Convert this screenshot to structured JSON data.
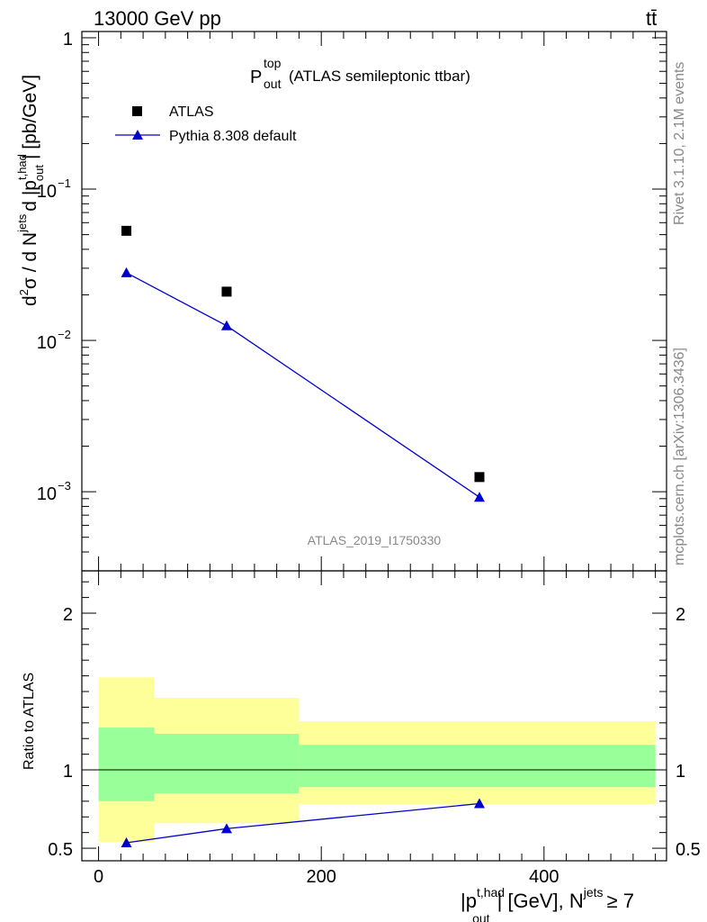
{
  "header": {
    "energy": "13000 GeV pp",
    "process": "tt̄"
  },
  "side": {
    "rivet": "Rivet 3.1.10,  2.1M events",
    "source": "mcplots.cern.ch [arXiv:1306.3436]"
  },
  "chart_data": [
    {
      "type": "scatter",
      "title": {
        "main": "P",
        "sup": "top",
        "sub": "out",
        "rest": "(ATLAS semileptonic ttbar)"
      },
      "watermark": "ATLAS_2019_I1750330",
      "ylabel": "d²σ / d N^jets d |p_out^t,had| [pb/GeV]",
      "yscale": "log",
      "ylim": [
        0.0003,
        1.1
      ],
      "xlim": [
        -15,
        510
      ],
      "yticks": [
        {
          "base": "10",
          "exp": "",
          "value": 1,
          "label": "1"
        },
        {
          "base": "10",
          "exp": "−1",
          "value": 0.1
        },
        {
          "base": "10",
          "exp": "−2",
          "value": 0.01
        },
        {
          "base": "10",
          "exp": "−3",
          "value": 0.001
        }
      ],
      "legend_position": "top-left",
      "series": [
        {
          "name": "ATLAS",
          "marker": "square",
          "color": "#000000",
          "x": [
            25,
            115,
            342
          ],
          "y": [
            0.053,
            0.021,
            0.00125
          ]
        },
        {
          "name": "Pythia 8.308 default",
          "marker": "triangle",
          "color": "#0000cc",
          "x": [
            25,
            115,
            342
          ],
          "y": [
            0.028,
            0.0125,
            0.00092
          ]
        }
      ]
    },
    {
      "type": "line",
      "ylabel": "Ratio to ATLAS",
      "xlabel": "|p_out^t,had| [GeV], N^jets ≥ 7",
      "xlim": [
        -15,
        510
      ],
      "ylim": [
        0.42,
        2.27
      ],
      "yticks": [
        0.5,
        1,
        2
      ],
      "xticks": [
        0,
        200,
        400
      ],
      "bands": [
        {
          "x0": 0,
          "x1": 50,
          "yellow": [
            0.54,
            1.59
          ],
          "green": [
            0.8,
            1.27
          ]
        },
        {
          "x0": 50,
          "x1": 180,
          "yellow": [
            0.66,
            1.46
          ],
          "green": [
            0.85,
            1.23
          ]
        },
        {
          "x0": 180,
          "x1": 500,
          "yellow": [
            0.78,
            1.31
          ],
          "green": [
            0.89,
            1.16
          ]
        }
      ],
      "series": [
        {
          "name": "Pythia 8.308 default",
          "marker": "triangle",
          "color": "#0000cc",
          "x": [
            25,
            115,
            342
          ],
          "y": [
            0.535,
            0.625,
            0.785
          ]
        }
      ]
    }
  ],
  "labels": {
    "xlabel_main": "|p",
    "xlabel_sup": "t,had",
    "xlabel_sub": "out",
    "xlabel_rest": "| [GeV], N",
    "xlabel_sup2": "jets",
    "xlabel_end": "≥ 7",
    "ylabel_top_a": "d",
    "ylabel_top_b": "σ / d N",
    "ylabel_top_sup2": "2",
    "ylabel_top_jets": "jets",
    "ylabel_top_c": "d |p",
    "ylabel_top_sup": "t,had",
    "ylabel_top_sub": "out",
    "ylabel_top_d": "| [pb/GeV]",
    "ylabel_ratio": "Ratio to ATLAS",
    "ratio_ticks": [
      "0.5",
      "1",
      "2"
    ],
    "x_ticks": [
      "0",
      "200",
      "400"
    ]
  }
}
